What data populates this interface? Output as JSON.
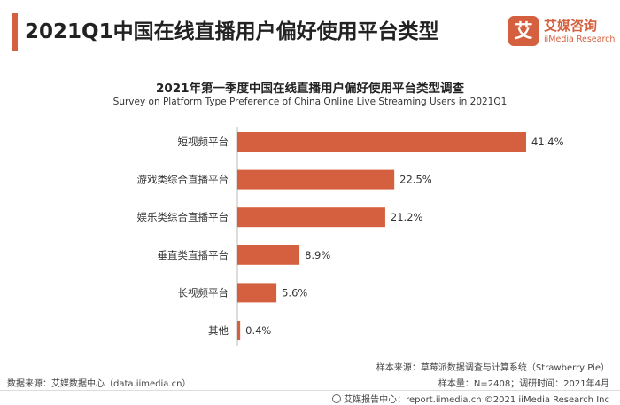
{
  "header": {
    "title": "2021Q1中国在线直播用户偏好使用平台类型",
    "accent_color": "#d5603f"
  },
  "logo": {
    "mark": "艾",
    "name_cn": "艾媒咨询",
    "name_en": "iiMedia Research"
  },
  "chart_data": {
    "type": "bar",
    "orientation": "horizontal",
    "title": "2021年第一季度中国在线直播用户偏好使用平台类型调查",
    "subtitle": "Survey on Platform Type Preference of China Online Live Streaming Users in 2021Q1",
    "categories": [
      "短视频平台",
      "游戏类综合直播平台",
      "娱乐类综合直播平台",
      "垂直类直播平台",
      "长视频平台",
      "其他"
    ],
    "values": [
      41.4,
      22.5,
      21.2,
      8.9,
      5.6,
      0.4
    ],
    "value_labels": [
      "41.4%",
      "22.5%",
      "21.2%",
      "8.9%",
      "5.6%",
      "0.4%"
    ],
    "unit": "%",
    "bar_color": "#d5603f",
    "xlim": [
      0,
      45
    ],
    "grid": false,
    "legend": "none"
  },
  "source": {
    "left": "数据来源：艾媒数据中心（data.iimedia.cn）",
    "sample_source": "样本来源：草莓派数据调查与计算系统（Strawberry Pie）",
    "sample_size": "样本量：N=2408；调研时间：2021年4月"
  },
  "footer": {
    "text": "艾媒报告中心：report.iimedia.cn ©2021  iiMedia Research  Inc"
  }
}
